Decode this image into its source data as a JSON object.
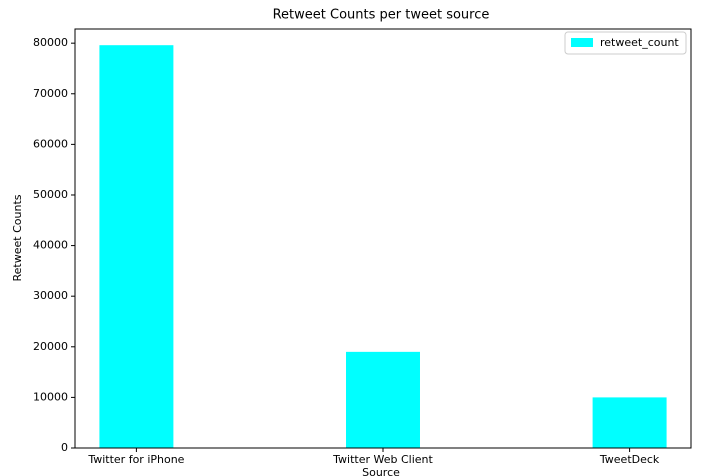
{
  "chart_data": {
    "type": "bar",
    "title": "Retweet Counts per tweet source",
    "x_label": "Source",
    "y_label": "Retweet Counts",
    "categories": [
      "Twitter for iPhone",
      "Twitter Web Client",
      "TweetDeck"
    ],
    "series": [
      {
        "name": "retweet_count",
        "color": "#00ffff",
        "values": [
          79600,
          19000,
          10000
        ]
      }
    ],
    "ylim": [
      0,
      82800
    ],
    "yticks": [
      0,
      10000,
      20000,
      30000,
      40000,
      50000,
      60000,
      70000,
      80000
    ],
    "legend": "upper right"
  }
}
